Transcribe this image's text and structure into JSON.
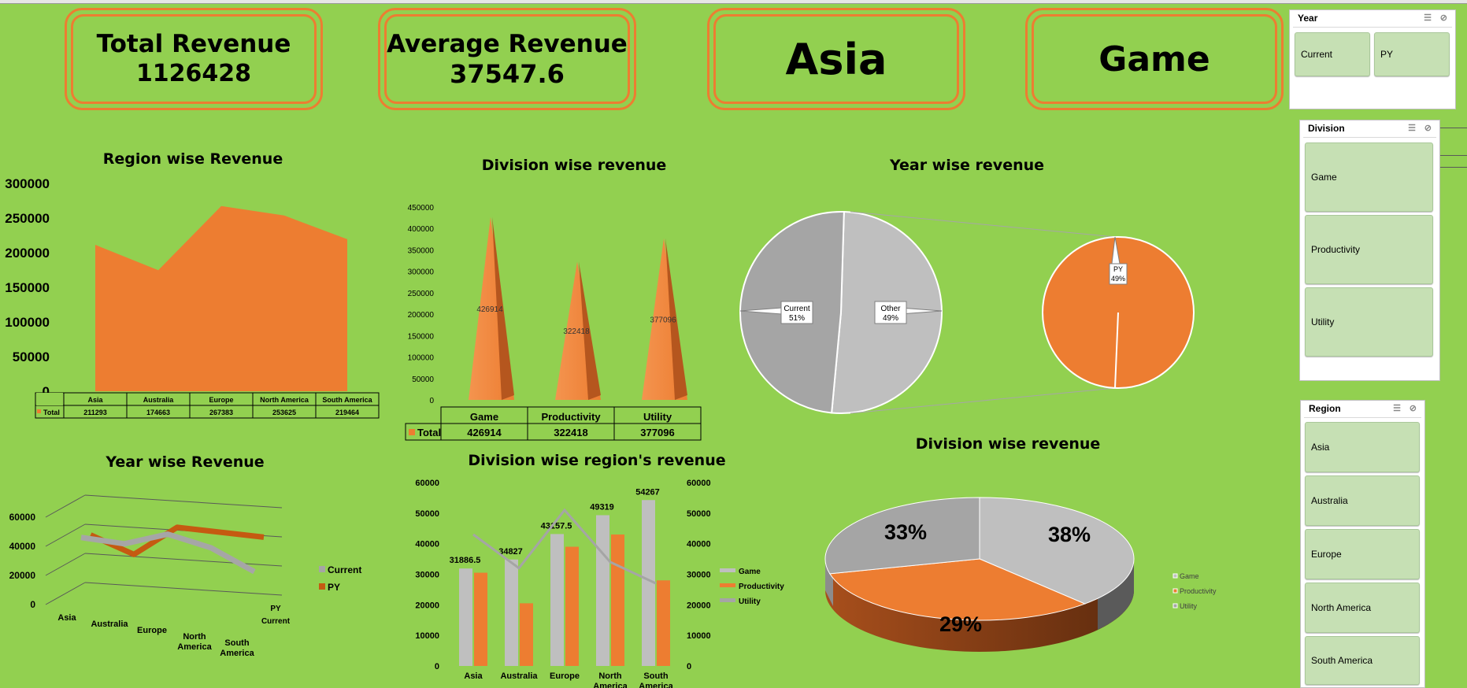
{
  "kpis": {
    "total_revenue_label": "Total Revenue",
    "total_revenue_value": "1126428",
    "average_revenue_label": "Average Revenue",
    "average_revenue_value": "37547.6",
    "selected_region": "Asia",
    "selected_division": "Game"
  },
  "colors": {
    "background": "#92d050",
    "orange": "#ed7d31",
    "gray": "#bfbfbf",
    "dark_gray": "#a5a5a5",
    "slicer_button": "#c6e0b4"
  },
  "slicers": {
    "year": {
      "title": "Year",
      "items": [
        "Current",
        "PY"
      ]
    },
    "division": {
      "title": "Division",
      "items": [
        "Game",
        "Productivity",
        "Utility"
      ]
    },
    "region": {
      "title": "Region",
      "items": [
        "Asia",
        "Australia",
        "Europe",
        "North America",
        "South America"
      ]
    }
  },
  "chart_data": [
    {
      "id": "region_area",
      "type": "area",
      "title": "Region wise Revenue",
      "categories": [
        "Asia",
        "Australia",
        "Europe",
        "North America",
        "South America"
      ],
      "series": [
        {
          "name": "Total",
          "values": [
            211293,
            174663,
            267383,
            253625,
            219464
          ]
        }
      ],
      "y_ticks": [
        "0",
        "50000",
        "100000",
        "150000",
        "200000",
        "250000",
        "300000"
      ],
      "ylim": [
        0,
        300000
      ],
      "data_table": true
    },
    {
      "id": "division_cone",
      "type": "bar",
      "title": "Division wise revenue",
      "categories": [
        "Game",
        "Productivity",
        "Utility"
      ],
      "series": [
        {
          "name": "Total",
          "values": [
            426914,
            322418,
            377096
          ]
        }
      ],
      "data_labels": [
        "426914",
        "322418",
        "377096"
      ],
      "y_ticks": [
        "0",
        "50000",
        "100000",
        "150000",
        "200000",
        "250000",
        "300000",
        "350000",
        "400000",
        "450000"
      ],
      "ylim": [
        0,
        450000
      ],
      "data_table": true
    },
    {
      "id": "year_pie",
      "type": "pie",
      "title": "Year wise revenue",
      "slices": [
        {
          "label": "Current",
          "percent": "51%",
          "value": 51
        },
        {
          "label": "Other",
          "percent": "49%",
          "value": 49
        }
      ],
      "secondary": [
        {
          "label": "PY",
          "percent": "49%",
          "value": 49
        }
      ]
    },
    {
      "id": "year_line",
      "type": "line",
      "title": "Year wise Revenue",
      "categories": [
        "Asia",
        "Australia",
        "Europe",
        "North America",
        "South America"
      ],
      "series": [
        {
          "name": "Current",
          "values": [
            41000,
            37000,
            44000,
            35000,
            19000
          ]
        },
        {
          "name": "PY",
          "values": [
            39000,
            26000,
            45000,
            42000,
            39000
          ]
        }
      ],
      "y_ticks": [
        "0",
        "20000",
        "40000",
        "60000"
      ],
      "ylim": [
        0,
        60000
      ],
      "depth_labels": [
        "PY",
        "Current"
      ]
    },
    {
      "id": "division_region_combo",
      "type": "bar",
      "title": "Division wise region's revenue",
      "categories": [
        "Asia",
        "Australia",
        "Europe",
        "North America",
        "South America"
      ],
      "series": [
        {
          "name": "Game",
          "values": [
            31886.5,
            34827,
            43157.5,
            49319,
            54267
          ]
        },
        {
          "name": "Productivity",
          "values": [
            30500,
            20500,
            39000,
            43000,
            28000
          ]
        },
        {
          "name": "Utility",
          "values": [
            43000,
            32000,
            51000,
            34000,
            27000
          ]
        }
      ],
      "data_labels": [
        "31886.5",
        "34827",
        "43157.5",
        "49319",
        "54267"
      ],
      "y_ticks": [
        "0",
        "10000",
        "20000",
        "30000",
        "40000",
        "50000",
        "60000"
      ],
      "ylim": [
        0,
        60000
      ]
    },
    {
      "id": "division_pie3d",
      "type": "pie",
      "title": "Division wise revenue",
      "slices": [
        {
          "label": "Game",
          "percent": "38%",
          "value": 38
        },
        {
          "label": "Productivity",
          "percent": "29%",
          "value": 29
        },
        {
          "label": "Utility",
          "percent": "33%",
          "value": 33
        }
      ]
    }
  ]
}
